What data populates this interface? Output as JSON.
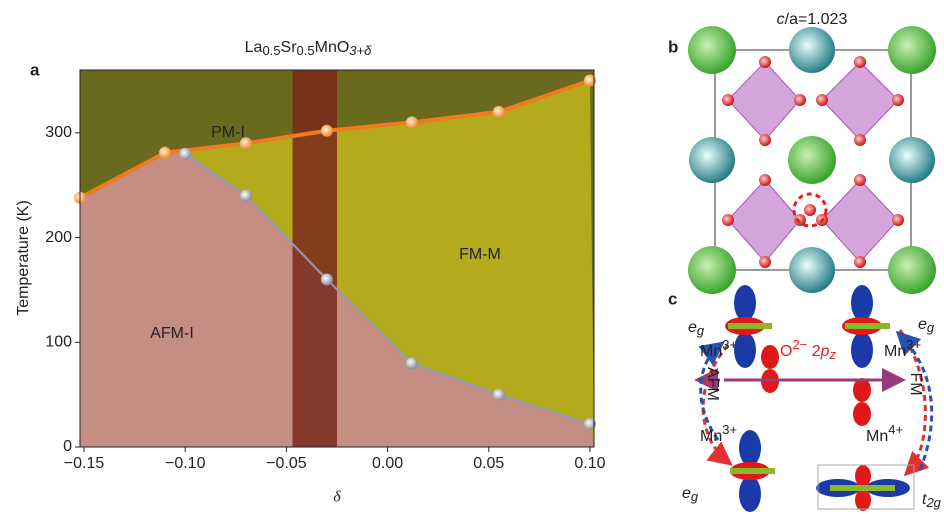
{
  "chart_data": {
    "type": "phase",
    "title": [
      "La",
      "0.5",
      "Sr",
      "0.5",
      "MnO",
      "3+δ"
    ],
    "panel_label": "a",
    "x_label": "δ",
    "y_label": "Temperature (K)",
    "xlim": [
      -0.152,
      0.102
    ],
    "ylim": [
      0,
      360
    ],
    "xticks": [
      {
        "value": -0.15,
        "label": "−0.15"
      },
      {
        "value": -0.1,
        "label": "−0.10"
      },
      {
        "value": -0.05,
        "label": "−0.05"
      },
      {
        "value": 0,
        "label": "0.00"
      },
      {
        "value": 0.05,
        "label": "0.05"
      },
      {
        "value": 0.1,
        "label": "0.10"
      }
    ],
    "yticks": [
      0,
      100,
      200,
      300
    ],
    "band": [
      -0.047,
      -0.025
    ],
    "regions": [
      "PM-I",
      "FM-M",
      "AFM-I"
    ],
    "series": [
      {
        "color": "#f07a1e",
        "x": [
          -0.152,
          -0.11,
          -0.07,
          -0.03,
          0.012,
          0.055,
          0.1
        ],
        "values": [
          238,
          281,
          290,
          302,
          310,
          320,
          350
        ]
      },
      {
        "color": "#8f9cc4",
        "x": [
          -0.1,
          -0.07,
          -0.03,
          0.012,
          0.055,
          0.1
        ],
        "values": [
          280,
          240,
          160,
          80,
          50,
          22
        ]
      }
    ]
  },
  "panel_b": {
    "label": "b",
    "ratio": [
      "c",
      "/a=1.023"
    ]
  },
  "panel_c": {
    "label": "c",
    "eg": [
      "e",
      "g"
    ],
    "t2g": [
      "t",
      "2g"
    ],
    "mn3": [
      "Mn",
      "3+"
    ],
    "mn4": [
      "Mn",
      "4+"
    ],
    "o2p": [
      "O",
      "2−",
      " 2",
      "p",
      "z"
    ],
    "afm": "AFM",
    "fm": "FM"
  }
}
